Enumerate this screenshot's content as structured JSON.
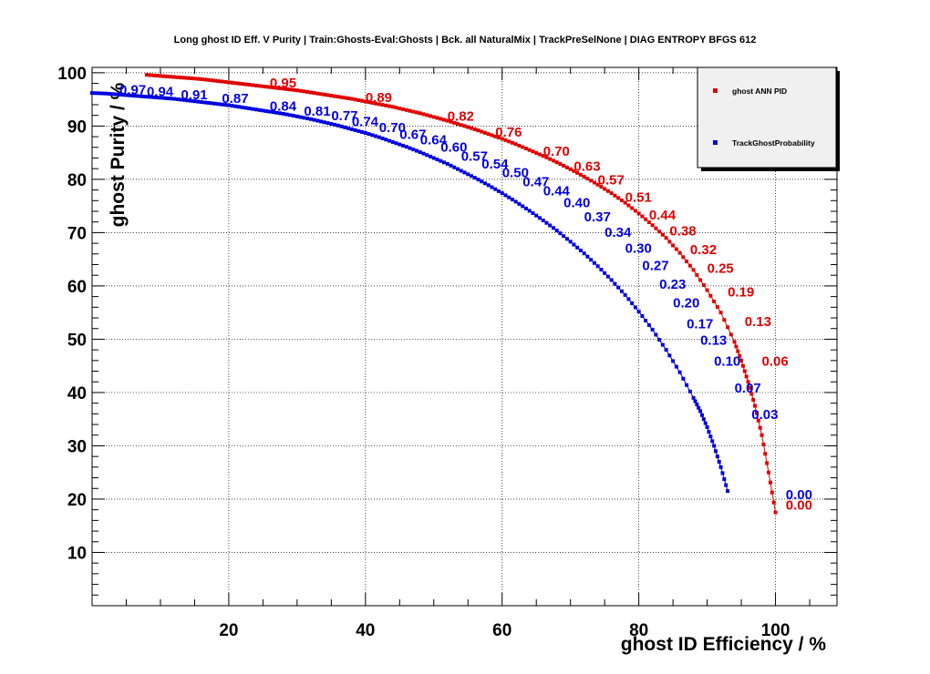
{
  "chart_data": {
    "type": "scatter",
    "title": "Long ghost ID Eff. V Purity | Train:Ghosts-Eval:Ghosts | Bck. all NaturalMix | TrackPreSelNone | DIAG ENTROPY BFGS 612",
    "xlabel": "ghost ID Efficiency / %",
    "ylabel": "ghost Purity / %",
    "xlim": [
      0,
      109
    ],
    "ylim": [
      0,
      101
    ],
    "x_ticks": [
      "20",
      "40",
      "60",
      "80",
      "100"
    ],
    "y_ticks": [
      "10",
      "20",
      "30",
      "40",
      "50",
      "60",
      "70",
      "80",
      "90",
      "100"
    ],
    "grid": true,
    "legend_position": "top-right",
    "series": [
      {
        "name": "ghost ANN PID",
        "color": "#e00000",
        "points": [
          [
            8,
            99.6
          ],
          [
            10,
            99.4
          ],
          [
            12,
            99.2
          ],
          [
            14,
            99.0
          ],
          [
            16,
            98.8
          ],
          [
            18,
            98.5
          ],
          [
            20,
            98.2
          ],
          [
            22,
            97.9
          ],
          [
            24,
            97.6
          ],
          [
            26,
            97.3
          ],
          [
            28,
            97.0
          ],
          [
            30,
            96.7
          ],
          [
            32,
            96.3
          ],
          [
            34,
            95.9
          ],
          [
            36,
            95.5
          ],
          [
            38,
            95.1
          ],
          [
            40,
            94.6
          ],
          [
            42,
            94.1
          ],
          [
            44,
            93.6
          ],
          [
            46,
            93.0
          ],
          [
            48,
            92.4
          ],
          [
            50,
            91.7
          ],
          [
            52,
            91.0
          ],
          [
            54,
            90.2
          ],
          [
            56,
            89.4
          ],
          [
            58,
            88.5
          ],
          [
            60,
            87.6
          ],
          [
            62,
            86.6
          ],
          [
            64,
            85.5
          ],
          [
            66,
            84.4
          ],
          [
            68,
            83.2
          ],
          [
            70,
            81.9
          ],
          [
            72,
            80.5
          ],
          [
            74,
            79.0
          ],
          [
            76,
            77.4
          ],
          [
            78,
            75.6
          ],
          [
            80,
            73.6
          ],
          [
            82,
            71.4
          ],
          [
            84,
            69.0
          ],
          [
            86,
            66.2
          ],
          [
            88,
            63.0
          ],
          [
            90,
            59.2
          ],
          [
            92,
            55.0
          ],
          [
            94,
            49.5
          ],
          [
            95,
            46.0
          ],
          [
            96,
            42.0
          ],
          [
            97,
            37.5
          ],
          [
            98,
            32.0
          ],
          [
            99,
            25.0
          ],
          [
            100,
            17.5
          ]
        ],
        "cut_labels": [
          {
            "text": "0.95",
            "x": 26,
            "y": 97.2
          },
          {
            "text": "0.89",
            "x": 40,
            "y": 94.5
          },
          {
            "text": "0.82",
            "x": 52,
            "y": 91.0
          },
          {
            "text": "0.76",
            "x": 59,
            "y": 88.0
          },
          {
            "text": "0.70",
            "x": 66,
            "y": 84.4
          },
          {
            "text": "0.63",
            "x": 70.5,
            "y": 81.6
          },
          {
            "text": "0.57",
            "x": 74,
            "y": 79.0
          },
          {
            "text": "0.51",
            "x": 78,
            "y": 75.8
          },
          {
            "text": "0.44",
            "x": 81.5,
            "y": 72.5
          },
          {
            "text": "0.38",
            "x": 84.5,
            "y": 69.5
          },
          {
            "text": "0.32",
            "x": 87.5,
            "y": 66.0
          },
          {
            "text": "0.25",
            "x": 90,
            "y": 62.5
          },
          {
            "text": "0.19",
            "x": 93,
            "y": 58.0
          },
          {
            "text": "0.13",
            "x": 95.5,
            "y": 52.5
          },
          {
            "text": "0.06",
            "x": 98,
            "y": 45.0
          },
          {
            "text": "0.00",
            "x": 101.5,
            "y": 18.0
          }
        ]
      },
      {
        "name": "TrackGhostProbability",
        "color": "#0000e0",
        "points": [
          [
            0,
            96.2
          ],
          [
            2,
            96.1
          ],
          [
            4,
            95.9
          ],
          [
            6,
            95.7
          ],
          [
            8,
            95.5
          ],
          [
            10,
            95.3
          ],
          [
            12,
            95.1
          ],
          [
            14,
            94.8
          ],
          [
            16,
            94.5
          ],
          [
            18,
            94.2
          ],
          [
            20,
            93.9
          ],
          [
            22,
            93.5
          ],
          [
            24,
            93.1
          ],
          [
            26,
            92.7
          ],
          [
            28,
            92.3
          ],
          [
            30,
            91.8
          ],
          [
            32,
            91.3
          ],
          [
            34,
            90.7
          ],
          [
            36,
            90.1
          ],
          [
            38,
            89.4
          ],
          [
            40,
            88.7
          ],
          [
            42,
            87.9
          ],
          [
            44,
            87.0
          ],
          [
            46,
            86.1
          ],
          [
            48,
            85.1
          ],
          [
            50,
            84.0
          ],
          [
            52,
            82.9
          ],
          [
            54,
            81.6
          ],
          [
            56,
            80.3
          ],
          [
            58,
            78.9
          ],
          [
            60,
            77.4
          ],
          [
            62,
            75.8
          ],
          [
            64,
            74.1
          ],
          [
            66,
            72.3
          ],
          [
            68,
            70.4
          ],
          [
            70,
            68.3
          ],
          [
            72,
            66.1
          ],
          [
            74,
            63.7
          ],
          [
            76,
            61.1
          ],
          [
            78,
            58.3
          ],
          [
            80,
            55.2
          ],
          [
            82,
            51.8
          ],
          [
            84,
            48.0
          ],
          [
            86,
            43.8
          ],
          [
            88,
            39.0
          ],
          [
            89,
            36.5
          ],
          [
            90,
            33.5
          ],
          [
            91,
            30.0
          ],
          [
            92,
            26.0
          ],
          [
            93,
            21.5
          ]
        ],
        "cut_labels": [
          {
            "text": "0.97",
            "x": 4,
            "y": 96.0
          },
          {
            "text": "0.94",
            "x": 8,
            "y": 95.6
          },
          {
            "text": "0.91",
            "x": 13,
            "y": 95.0
          },
          {
            "text": "0.87",
            "x": 19,
            "y": 94.3
          },
          {
            "text": "0.84",
            "x": 26,
            "y": 92.9
          },
          {
            "text": "0.81",
            "x": 31,
            "y": 91.9
          },
          {
            "text": "0.77",
            "x": 35,
            "y": 91.1
          },
          {
            "text": "0.74",
            "x": 38,
            "y": 90.0
          },
          {
            "text": "0.70",
            "x": 42,
            "y": 88.9
          },
          {
            "text": "0.67",
            "x": 45,
            "y": 87.6
          },
          {
            "text": "0.64",
            "x": 48,
            "y": 86.6
          },
          {
            "text": "0.60",
            "x": 51,
            "y": 85.2
          },
          {
            "text": "0.57",
            "x": 54,
            "y": 83.5
          },
          {
            "text": "0.54",
            "x": 57,
            "y": 82.0
          },
          {
            "text": "0.50",
            "x": 60,
            "y": 80.4
          },
          {
            "text": "0.47",
            "x": 63,
            "y": 78.7
          },
          {
            "text": "0.44",
            "x": 66,
            "y": 77.0
          },
          {
            "text": "0.40",
            "x": 69,
            "y": 74.8
          },
          {
            "text": "0.37",
            "x": 72,
            "y": 72.1
          },
          {
            "text": "0.34",
            "x": 75,
            "y": 69.2
          },
          {
            "text": "0.30",
            "x": 78,
            "y": 66.2
          },
          {
            "text": "0.27",
            "x": 80.5,
            "y": 63.0
          },
          {
            "text": "0.23",
            "x": 83,
            "y": 59.5
          },
          {
            "text": "0.20",
            "x": 85,
            "y": 56.0
          },
          {
            "text": "0.17",
            "x": 87,
            "y": 52.0
          },
          {
            "text": "0.13",
            "x": 89,
            "y": 49.0
          },
          {
            "text": "0.10",
            "x": 91,
            "y": 45.0
          },
          {
            "text": "0.07",
            "x": 94,
            "y": 40.0
          },
          {
            "text": "0.03",
            "x": 96.5,
            "y": 35.0
          },
          {
            "text": "0.00",
            "x": 101.5,
            "y": 20.0
          }
        ]
      }
    ]
  }
}
